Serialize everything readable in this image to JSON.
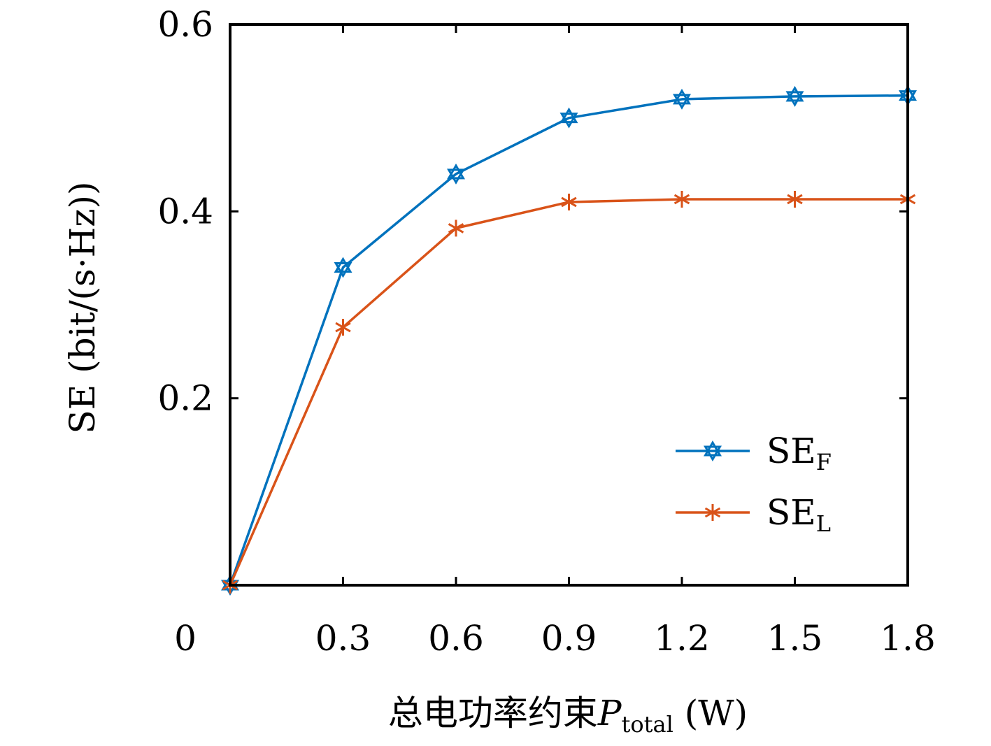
{
  "chart_data": {
    "type": "line",
    "xlabel": {
      "main": "总电功率约束",
      "var": "P",
      "sub": "total",
      "unit": " (W)"
    },
    "ylabel": "SE (bit/(s·Hz))",
    "x": [
      0,
      0.3,
      0.6,
      0.9,
      1.2,
      1.5,
      1.8
    ],
    "x_tick_labels": [
      "0",
      "0.3",
      "0.6",
      "0.9",
      "1.2",
      "1.5",
      "1.8"
    ],
    "y_tick_labels": [
      "0.2",
      "0.4",
      "0.6"
    ],
    "y_ticks": [
      0.2,
      0.4,
      0.6
    ],
    "xlim": [
      0,
      1.8
    ],
    "ylim": [
      0,
      0.6
    ],
    "grid": false,
    "legend_position": "bottom-right",
    "series": [
      {
        "name": "SE",
        "sub": "F",
        "color": "#0072BD",
        "marker": "hexagram",
        "values": [
          0,
          0.34,
          0.44,
          0.5,
          0.52,
          0.523,
          0.524
        ]
      },
      {
        "name": "SE",
        "sub": "L",
        "color": "#D95319",
        "marker": "asterisk",
        "values": [
          0,
          0.276,
          0.382,
          0.41,
          0.413,
          0.413,
          0.413
        ]
      }
    ]
  }
}
